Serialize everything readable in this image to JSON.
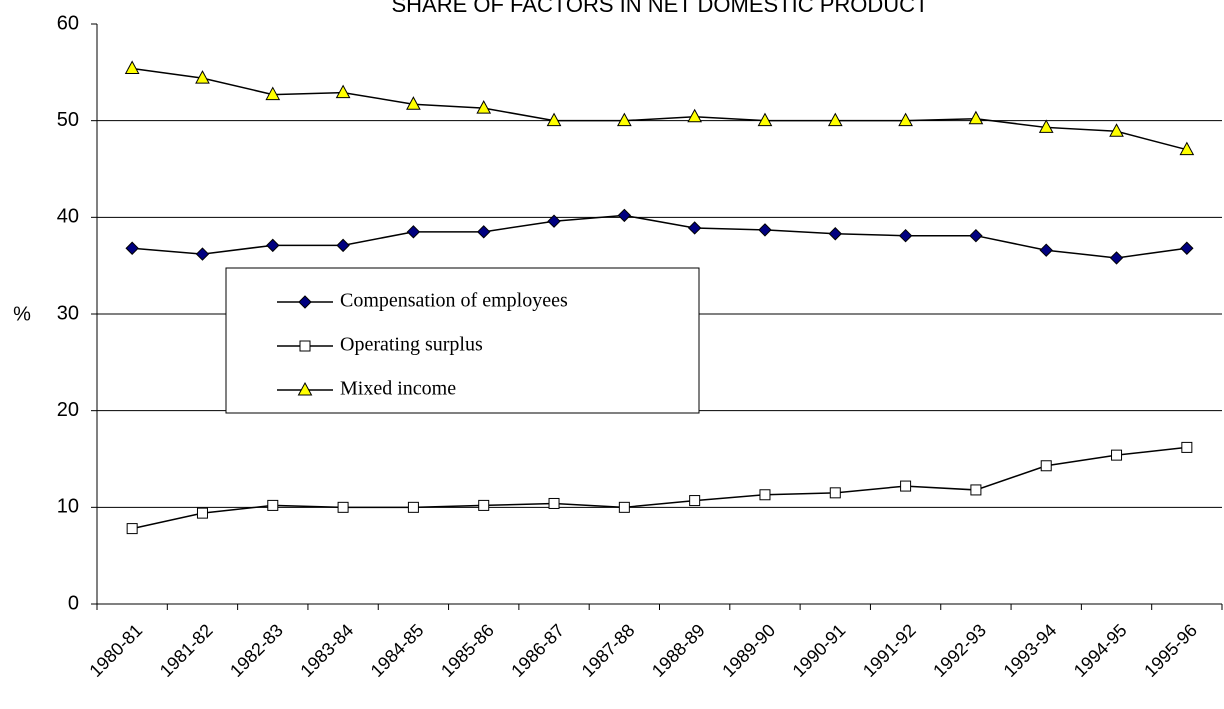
{
  "chart_data": {
    "type": "line",
    "title": "SHARE OF FACTORS IN NET DOMESTIC PRODUCT",
    "y_label": "%",
    "categories": [
      "1980-81",
      "1981-82",
      "1982-83",
      "1983-84",
      "1984-85",
      "1985-86",
      "1986-87",
      "1987-88",
      "1988-89",
      "1989-90",
      "1990-91",
      "1991-92",
      "1992-93",
      "1993-94",
      "1994-95",
      "1995-96"
    ],
    "series": [
      {
        "name": "Compensation of employees",
        "color": "#000080",
        "marker": "diamond",
        "values": [
          36.8,
          36.2,
          37.1,
          37.1,
          38.5,
          38.5,
          39.6,
          40.2,
          38.9,
          38.7,
          38.3,
          38.1,
          38.1,
          36.6,
          35.8,
          36.8
        ]
      },
      {
        "name": "Operating surplus",
        "color": "#ffffff",
        "marker": "square",
        "values": [
          7.8,
          9.4,
          10.2,
          10.0,
          10.0,
          10.2,
          10.4,
          10.0,
          10.7,
          11.3,
          11.5,
          12.2,
          11.8,
          14.3,
          15.4,
          16.2
        ]
      },
      {
        "name": "Mixed income",
        "color": "#ffff00",
        "marker": "triangle",
        "values": [
          55.4,
          54.4,
          52.7,
          52.9,
          51.7,
          51.3,
          50.0,
          50.0,
          50.4,
          50.0,
          50.0,
          50.0,
          50.2,
          49.3,
          48.9,
          47.0
        ]
      }
    ],
    "ylim": [
      0,
      60
    ],
    "yticks": [
      0,
      10,
      20,
      30,
      40,
      50,
      60
    ],
    "grid": true
  }
}
